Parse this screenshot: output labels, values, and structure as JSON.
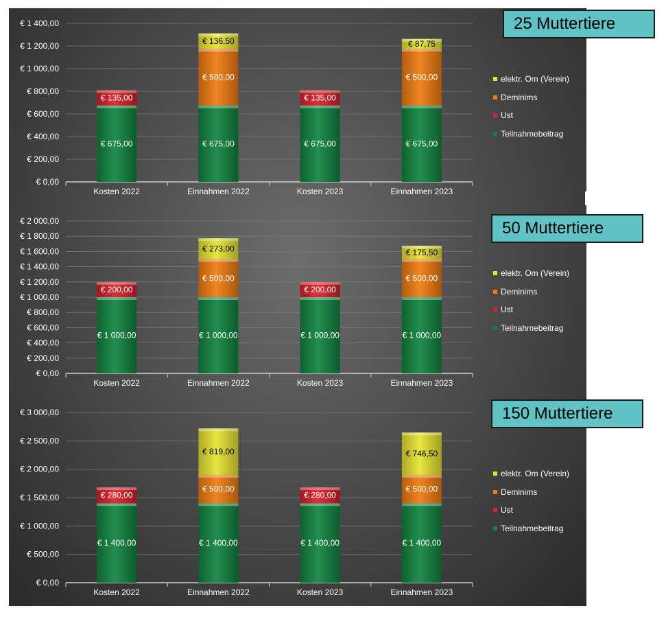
{
  "colors": {
    "Teilnahmebeitrag": "#11843f",
    "Ust": "#d9202a",
    "Deminims": "#f07c10",
    "elektr. Om (Verein)": "#e7e331"
  },
  "chart_data": [
    {
      "type": "bar",
      "stacked": true,
      "title": "25 Muttertiere",
      "categories": [
        "Kosten 2022",
        "Einnahmen 2022",
        "Kosten 2023",
        "Einnahmen 2023"
      ],
      "series": [
        {
          "name": "Teilnahmebeitrag",
          "values": [
            675,
            675,
            675,
            675
          ],
          "labels": [
            "€ 675,00",
            "€ 675,00",
            "€ 675,00",
            "€ 675,00"
          ]
        },
        {
          "name": "Ust",
          "values": [
            135,
            0,
            135,
            0
          ],
          "labels": [
            "€ 135,00",
            "",
            "€ 135,00",
            ""
          ]
        },
        {
          "name": "Deminims",
          "values": [
            0,
            500,
            0,
            500
          ],
          "labels": [
            "",
            "€ 500,00",
            "",
            "€ 500,00"
          ]
        },
        {
          "name": "elektr. Om (Verein)",
          "values": [
            0,
            136.5,
            0,
            87.75
          ],
          "labels": [
            "",
            "€ 136,50",
            "",
            "€ 87,75"
          ]
        }
      ],
      "ylim": [
        0,
        1400
      ],
      "yticks": [
        0,
        200,
        400,
        600,
        800,
        1000,
        1200,
        1400
      ],
      "ytick_labels": [
        "€ 0,00",
        "€ 200,00",
        "€ 400,00",
        "€ 600,00",
        "€ 800,00",
        "€ 1 000,00",
        "€ 1 200,00",
        "€ 1 400,00"
      ],
      "legend": [
        "elektr. Om (Verein)",
        "Deminims",
        "Ust",
        "Teilnahmebeitrag"
      ],
      "legend_position": "right",
      "grid": true
    },
    {
      "type": "bar",
      "stacked": true,
      "title": "50 Muttertiere",
      "categories": [
        "Kosten 2022",
        "Einnahmen 2022",
        "Kosten 2023",
        "Einnahmen 2023"
      ],
      "series": [
        {
          "name": "Teilnahmebeitrag",
          "values": [
            1000,
            1000,
            1000,
            1000
          ],
          "labels": [
            "€ 1 000,00",
            "€ 1 000,00",
            "€ 1 000,00",
            "€ 1 000,00"
          ]
        },
        {
          "name": "Ust",
          "values": [
            200,
            0,
            200,
            0
          ],
          "labels": [
            "€ 200,00",
            "",
            "€ 200,00",
            ""
          ]
        },
        {
          "name": "Deminims",
          "values": [
            0,
            500,
            0,
            500
          ],
          "labels": [
            "",
            "€ 500,00",
            "",
            "€ 500,00"
          ]
        },
        {
          "name": "elektr. Om (Verein)",
          "values": [
            0,
            273,
            0,
            175.5
          ],
          "labels": [
            "",
            "€ 273,00",
            "",
            "€ 175,50"
          ]
        }
      ],
      "ylim": [
        0,
        2000
      ],
      "yticks": [
        0,
        200,
        400,
        600,
        800,
        1000,
        1200,
        1400,
        1600,
        1800,
        2000
      ],
      "ytick_labels": [
        "€ 0,00",
        "€ 200,00",
        "€ 400,00",
        "€ 600,00",
        "€ 800,00",
        "€ 1 000,00",
        "€ 1 200,00",
        "€ 1 400,00",
        "€ 1 600,00",
        "€ 1 800,00",
        "€ 2 000,00"
      ],
      "legend": [
        "elektr. Om (Verein)",
        "Deminims",
        "Ust",
        "Teilnahmebeitrag"
      ],
      "legend_position": "right",
      "grid": true
    },
    {
      "type": "bar",
      "stacked": true,
      "title": "150 Muttertiere",
      "categories": [
        "Kosten 2022",
        "Einnahmen 2022",
        "Kosten 2023",
        "Einnahmen 2023"
      ],
      "series": [
        {
          "name": "Teilnahmebeitrag",
          "values": [
            1400,
            1400,
            1400,
            1400
          ],
          "labels": [
            "€ 1 400,00",
            "€ 1 400,00",
            "€ 1 400,00",
            "€ 1 400,00"
          ]
        },
        {
          "name": "Ust",
          "values": [
            280,
            0,
            280,
            0
          ],
          "labels": [
            "€ 280,00",
            "",
            "€ 280,00",
            ""
          ]
        },
        {
          "name": "Deminims",
          "values": [
            0,
            500,
            0,
            500
          ],
          "labels": [
            "",
            "€ 500,00",
            "",
            "€ 500,00"
          ]
        },
        {
          "name": "elektr. Om (Verein)",
          "values": [
            0,
            819,
            0,
            746.5
          ],
          "labels": [
            "",
            "€ 819,00",
            "",
            "€ 746,50"
          ]
        }
      ],
      "ylim": [
        0,
        3000
      ],
      "yticks": [
        0,
        500,
        1000,
        1500,
        2000,
        2500,
        3000
      ],
      "ytick_labels": [
        "€ 0,00",
        "€ 500,00",
        "€ 1 000,00",
        "€ 1 500,00",
        "€ 2 000,00",
        "€ 2 500,00",
        "€ 3 000,00"
      ],
      "legend": [
        "elektr. Om (Verein)",
        "Deminims",
        "Ust",
        "Teilnahmebeitrag"
      ],
      "legend_position": "right",
      "grid": true
    }
  ]
}
